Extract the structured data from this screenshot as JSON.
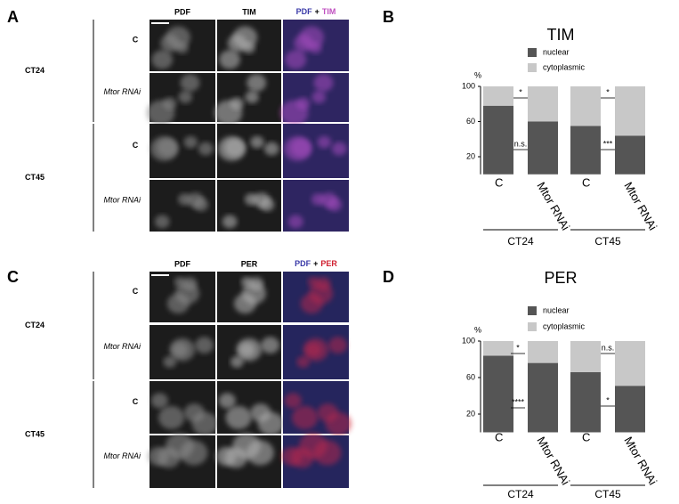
{
  "panels": [
    {
      "letter": "A",
      "columns": [
        "PDF",
        "TIM"
      ],
      "merge": [
        "PDF",
        "+",
        "TIM"
      ],
      "groups": [
        {
          "label": "CT24",
          "rows": [
            "C",
            "Mtor RNAi"
          ]
        },
        {
          "label": "CT45",
          "rows": [
            "C",
            "Mtor RNAi"
          ]
        }
      ]
    },
    {
      "letter": "C",
      "columns": [
        "PDF",
        "PER"
      ],
      "merge": [
        "PDF",
        "+",
        "PER"
      ],
      "groups": [
        {
          "label": "CT24",
          "rows": [
            "C",
            "Mtor RNAi"
          ]
        },
        {
          "label": "CT45",
          "rows": [
            "C",
            "Mtor RNAi"
          ]
        }
      ]
    }
  ],
  "chart_data": [
    {
      "type": "bar",
      "stacked": true,
      "panel_label": "B",
      "title": "TIM",
      "y_label": "%",
      "categories": [
        "C",
        "Mtor RNAi",
        "C",
        "Mtor RNAi"
      ],
      "groups": [
        "CT24",
        "CT45"
      ],
      "series": [
        {
          "name": "nuclear",
          "color": "#555555",
          "values": [
            78,
            60,
            55,
            44
          ]
        },
        {
          "name": "cytoplasmic",
          "color": "#c8c8c8",
          "values": [
            22,
            40,
            45,
            56
          ]
        }
      ],
      "ylim": [
        0,
        100
      ],
      "yticks": [
        20,
        60,
        100
      ],
      "annotations": [
        "*",
        "n.s.",
        "*",
        "***"
      ]
    },
    {
      "type": "bar",
      "stacked": true,
      "panel_label": "D",
      "title": "PER",
      "y_label": "%",
      "categories": [
        "C",
        "Mtor RNAi",
        "C",
        "Mtor RNAi"
      ],
      "groups": [
        "CT24",
        "CT45"
      ],
      "series": [
        {
          "name": "nuclear",
          "color": "#555555",
          "values": [
            84,
            76,
            66,
            51
          ]
        },
        {
          "name": "cytoplasmic",
          "color": "#c8c8c8",
          "values": [
            16,
            24,
            34,
            49
          ]
        }
      ],
      "ylim": [
        0,
        100
      ],
      "yticks": [
        20,
        60,
        100
      ],
      "annotations": [
        "*",
        "****",
        "n.s.",
        "*"
      ]
    }
  ]
}
